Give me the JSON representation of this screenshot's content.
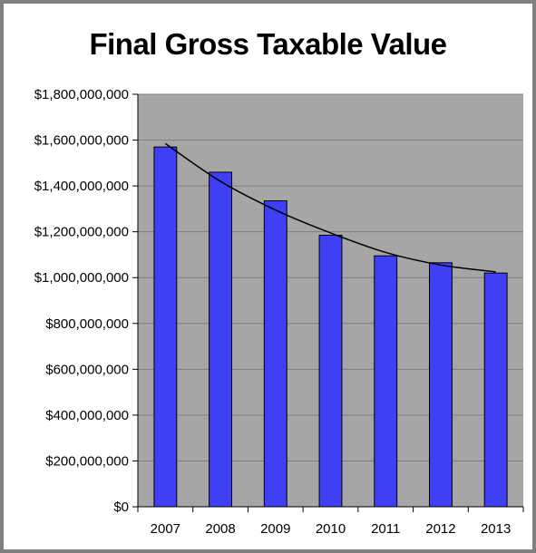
{
  "chart_data": {
    "type": "bar",
    "title": "Final Gross Taxable Value",
    "xlabel": "",
    "ylabel": "",
    "categories": [
      "2007",
      "2008",
      "2009",
      "2010",
      "2011",
      "2012",
      "2013"
    ],
    "values": [
      1570000000,
      1460000000,
      1335000000,
      1185000000,
      1095000000,
      1065000000,
      1020000000
    ],
    "trendline": {
      "type": "polynomial",
      "values": [
        1585000000,
        1420000000,
        1295000000,
        1195000000,
        1110000000,
        1055000000,
        1025000000
      ]
    },
    "ylim": [
      0,
      1800000000
    ],
    "y_ticks": [
      "$0",
      "$200,000,000",
      "$400,000,000",
      "$600,000,000",
      "$800,000,000",
      "$1,000,000,000",
      "$1,200,000,000",
      "$1,400,000,000",
      "$1,600,000,000",
      "$1,800,000,000"
    ],
    "grid": true,
    "legend": "none",
    "colors": {
      "bar": "#3f3ff5",
      "bar_border": "#000000",
      "plot_background": "#a6a6a6",
      "gridline": "#7f7f7f",
      "trendline": "#000000",
      "frame": "#7f7f7f"
    }
  }
}
